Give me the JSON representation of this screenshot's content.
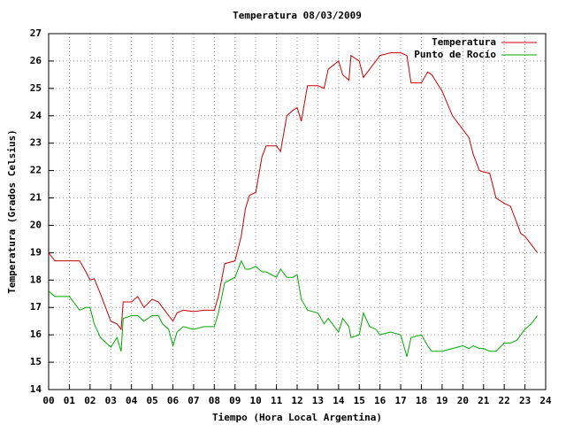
{
  "chart_data": {
    "type": "line",
    "title": "Temperatura 08/03/2009",
    "x_label": "Tiempo (Hora Local Argentina)",
    "y_label": "Temperatura (Grados Celsius)",
    "x": [
      0,
      0.3,
      1,
      1.5,
      1.8,
      2,
      2.2,
      2.5,
      3,
      3.3,
      3.5,
      3.6,
      4,
      4.3,
      4.6,
      5,
      5.3,
      5.5,
      5.8,
      6,
      6.2,
      6.5,
      7,
      7.5,
      8,
      8.2,
      8.5,
      9,
      9.3,
      9.5,
      9.7,
      10,
      10.3,
      10.5,
      11,
      11.2,
      11.5,
      11.8,
      12,
      12.2,
      12.5,
      13,
      13.3,
      13.5,
      14,
      14.2,
      14.5,
      14.6,
      15,
      15.2,
      15.5,
      15.8,
      16,
      16.5,
      17,
      17.3,
      17.5,
      18,
      18.3,
      18.5,
      19,
      19.5,
      20,
      20.3,
      20.5,
      20.8,
      21,
      21.3,
      21.6,
      22,
      22.3,
      22.6,
      22.8,
      23,
      23.3,
      23.6
    ],
    "series": [
      {
        "name": "Temperatura",
        "color": "#cc0000",
        "values": [
          19.0,
          18.7,
          18.7,
          18.7,
          18.3,
          18.0,
          18.05,
          17.5,
          16.5,
          16.4,
          16.2,
          17.2,
          17.2,
          17.4,
          17.0,
          17.3,
          17.2,
          17.0,
          16.7,
          16.5,
          16.8,
          16.9,
          16.85,
          16.9,
          16.9,
          17.4,
          18.6,
          18.7,
          19.6,
          20.6,
          21.1,
          21.2,
          22.5,
          22.9,
          22.9,
          22.7,
          24.0,
          24.2,
          24.3,
          23.8,
          25.1,
          25.1,
          25.0,
          25.7,
          26.0,
          25.5,
          25.3,
          26.2,
          26.0,
          25.4,
          25.7,
          26.0,
          26.2,
          26.3,
          26.3,
          26.2,
          25.2,
          25.2,
          25.6,
          25.5,
          24.9,
          24.0,
          23.5,
          23.2,
          22.6,
          22.0,
          21.95,
          21.9,
          21.0,
          20.8,
          20.7,
          20.1,
          19.7,
          19.6,
          19.3,
          19.0
        ]
      },
      {
        "name": "Punto de Rocío",
        "color": "#00aa00",
        "values": [
          17.6,
          17.4,
          17.4,
          16.9,
          17.0,
          17.0,
          16.4,
          15.9,
          15.55,
          15.9,
          15.4,
          16.6,
          16.7,
          16.7,
          16.5,
          16.7,
          16.7,
          16.4,
          16.2,
          15.6,
          16.1,
          16.3,
          16.2,
          16.3,
          16.3,
          16.8,
          17.9,
          18.1,
          18.7,
          18.4,
          18.4,
          18.5,
          18.3,
          18.3,
          18.1,
          18.4,
          18.1,
          18.1,
          18.2,
          17.3,
          16.9,
          16.8,
          16.4,
          16.6,
          16.1,
          16.6,
          16.3,
          15.9,
          16.0,
          16.8,
          16.3,
          16.2,
          16.0,
          16.1,
          16.0,
          15.2,
          15.9,
          16.0,
          15.6,
          15.4,
          15.4,
          15.5,
          15.6,
          15.5,
          15.6,
          15.5,
          15.5,
          15.4,
          15.4,
          15.7,
          15.7,
          15.8,
          16.0,
          16.2,
          16.4,
          16.7
        ]
      }
    ],
    "xlim": [
      0,
      24
    ],
    "xticks": [
      {
        "value": 0,
        "label": "00"
      },
      {
        "value": 1,
        "label": "01"
      },
      {
        "value": 2,
        "label": "02"
      },
      {
        "value": 3,
        "label": "03"
      },
      {
        "value": 4,
        "label": "04"
      },
      {
        "value": 5,
        "label": "05"
      },
      {
        "value": 6,
        "label": "06"
      },
      {
        "value": 7,
        "label": "07"
      },
      {
        "value": 8,
        "label": "08"
      },
      {
        "value": 9,
        "label": "09"
      },
      10,
      11,
      12,
      13,
      14,
      15,
      16,
      17,
      18,
      19,
      20,
      21,
      22,
      23,
      24
    ],
    "ylim": [
      14,
      27
    ],
    "yticks": [
      14,
      15,
      16,
      17,
      18,
      19,
      20,
      21,
      22,
      23,
      24,
      25,
      26,
      27
    ],
    "grid": true,
    "legend": "top-right"
  }
}
